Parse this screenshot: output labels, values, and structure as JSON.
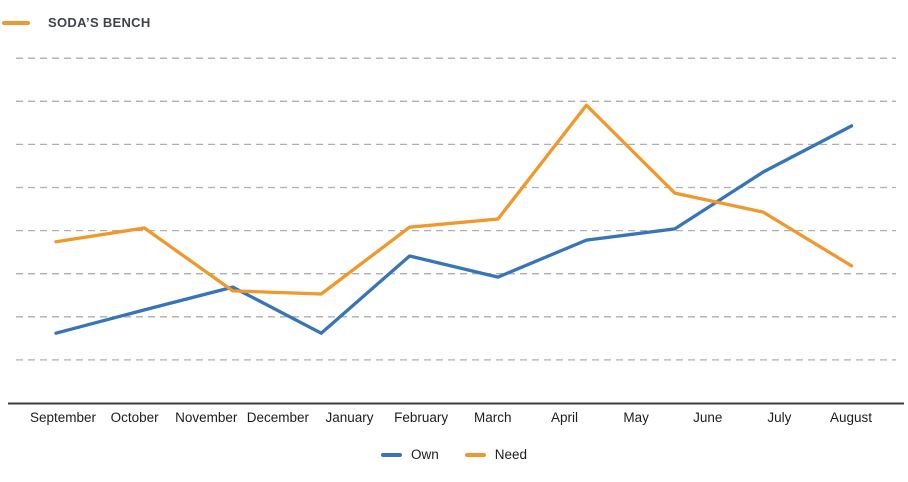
{
  "header": {
    "title": "SODA’S BENCH",
    "swatch_color": "#F0982B"
  },
  "chart_data": {
    "type": "line",
    "title": "SODA’S BENCH",
    "categories": [
      "September",
      "October",
      "November",
      "December",
      "January",
      "February",
      "March",
      "April",
      "May",
      "June",
      "July",
      "August"
    ],
    "series": [
      {
        "name": "Own",
        "color": "#3774B9",
        "values": [
          1.62,
          2.16,
          2.69,
          1.62,
          3.41,
          2.92,
          3.78,
          4.04,
          5.36,
          6.43
        ]
      },
      {
        "name": "Need",
        "color": "#F0982B",
        "values": [
          3.74,
          4.06,
          2.6,
          2.53,
          4.08,
          4.27,
          6.91,
          4.87,
          4.43,
          3.18
        ]
      }
    ],
    "points_per_series": 10,
    "y_axis": {
      "labels_visible": false,
      "gridlines": 8,
      "grid_style": "dashed",
      "ylim": [
        0,
        8.8
      ]
    },
    "axis_color": "#3D3D3D",
    "gridline_color": "#AFAFAF",
    "legend_position": "bottom"
  }
}
